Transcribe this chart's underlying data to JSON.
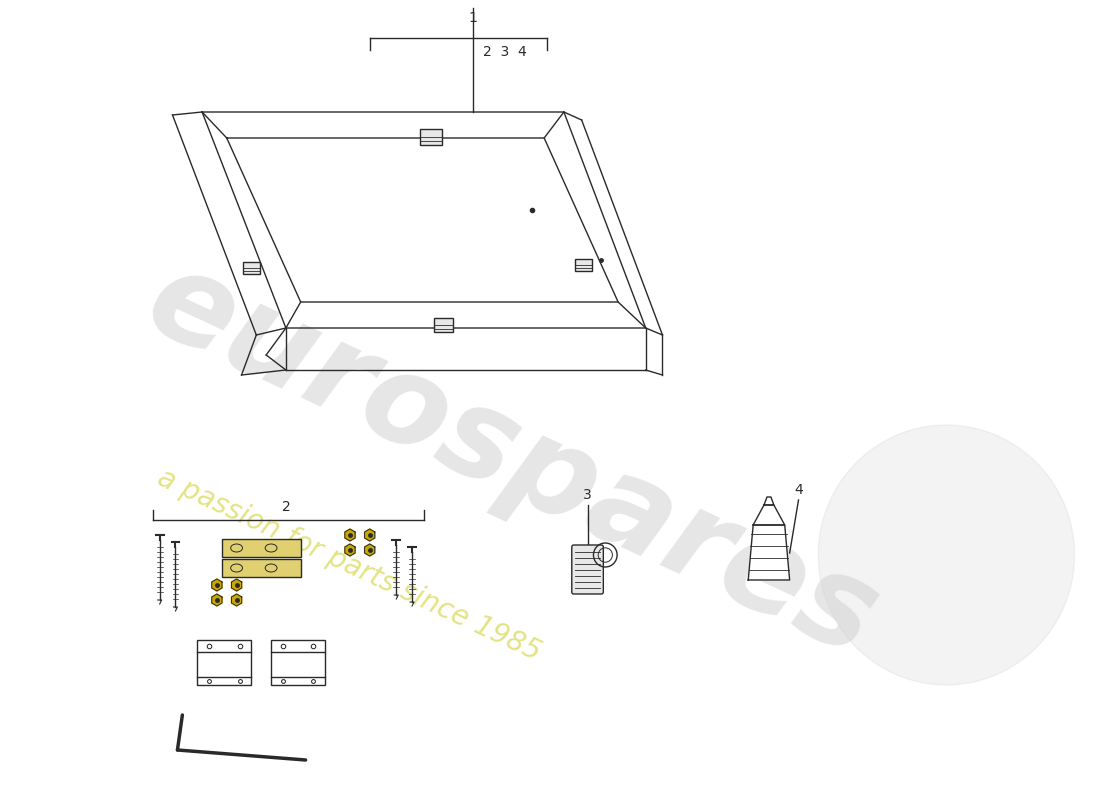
{
  "bg_color": "#ffffff",
  "watermark_text1": "eurospares",
  "watermark_text2": "a passion for parts since 1985",
  "line_color": "#2a2a2a",
  "watermark_gray": "#c8c8c8",
  "watermark_yellow": "#d8d850",
  "label1": "1",
  "label2": "2",
  "label3": "3",
  "label4": "4",
  "nuts_color": "#c8a800",
  "parts_bg": "#f0f0f0"
}
